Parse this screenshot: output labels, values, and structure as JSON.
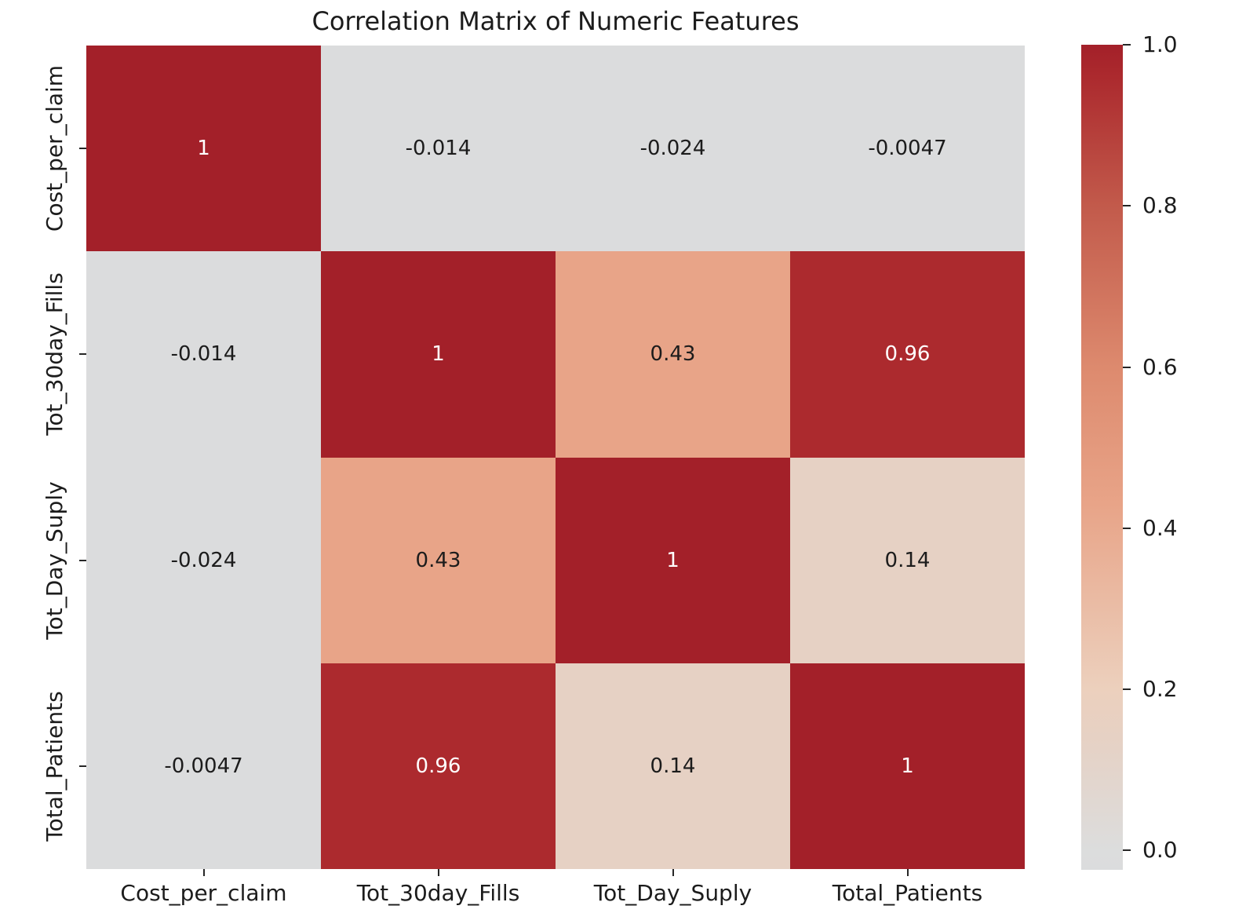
{
  "title": "Correlation Matrix of Numeric Features",
  "chart_data": {
    "type": "heatmap",
    "title": "Correlation Matrix of Numeric Features",
    "categories": [
      "Cost_per_claim",
      "Tot_30day_Fills",
      "Tot_Day_Suply",
      "Total_Patients"
    ],
    "matrix": [
      [
        1,
        -0.014,
        -0.024,
        -0.0047
      ],
      [
        -0.014,
        1,
        0.43,
        0.96
      ],
      [
        -0.024,
        0.43,
        1,
        0.14
      ],
      [
        -0.0047,
        0.96,
        0.14,
        1
      ]
    ],
    "cell_labels": [
      [
        "1",
        "-0.014",
        "-0.024",
        "-0.0047"
      ],
      [
        "-0.014",
        "1",
        "0.43",
        "0.96"
      ],
      [
        "-0.024",
        "0.43",
        "1",
        "0.14"
      ],
      [
        "-0.0047",
        "0.96",
        "0.14",
        "1"
      ]
    ],
    "cell_colors": [
      [
        "#a32029",
        "#dbdcdd",
        "#dbdcdd",
        "#dbdcdd"
      ],
      [
        "#dbdcdd",
        "#a32029",
        "#e8a488",
        "#ac2a2e"
      ],
      [
        "#dbdcdd",
        "#e8a488",
        "#a32029",
        "#e6d1c4"
      ],
      [
        "#dbdcdd",
        "#ac2a2e",
        "#e6d1c4",
        "#a32029"
      ]
    ],
    "cell_text_colors": [
      [
        "#ffffff",
        "#1c1c1c",
        "#1c1c1c",
        "#1c1c1c"
      ],
      [
        "#1c1c1c",
        "#ffffff",
        "#1c1c1c",
        "#ffffff"
      ],
      [
        "#1c1c1c",
        "#1c1c1c",
        "#ffffff",
        "#1c1c1c"
      ],
      [
        "#1c1c1c",
        "#ffffff",
        "#1c1c1c",
        "#ffffff"
      ]
    ],
    "colorbar": {
      "position": "right",
      "vmin": -0.024,
      "vmax": 1.0,
      "tick_labels": [
        "1.0",
        "0.8",
        "0.6",
        "0.4",
        "0.2",
        "0.0"
      ],
      "tick_values": [
        1.0,
        0.8,
        0.6,
        0.4,
        0.2,
        0.0
      ],
      "gradient_stops": [
        {
          "pos": 0.0,
          "color": "#a32029"
        },
        {
          "pos": 3.9,
          "color": "#ac2a2e"
        },
        {
          "pos": 19.5,
          "color": "#c25a4b"
        },
        {
          "pos": 39.1,
          "color": "#dd8a6e"
        },
        {
          "pos": 55.7,
          "color": "#e8a488"
        },
        {
          "pos": 78.1,
          "color": "#ecd0bd"
        },
        {
          "pos": 84.0,
          "color": "#e6d1c4"
        },
        {
          "pos": 97.7,
          "color": "#dcdddd"
        },
        {
          "pos": 100.0,
          "color": "#dbdcdd"
        }
      ]
    },
    "grid": false,
    "axis": {
      "x_tick_color": "#262626",
      "y_tick_color": "#262626",
      "label_color": "#1c1c1c"
    }
  }
}
